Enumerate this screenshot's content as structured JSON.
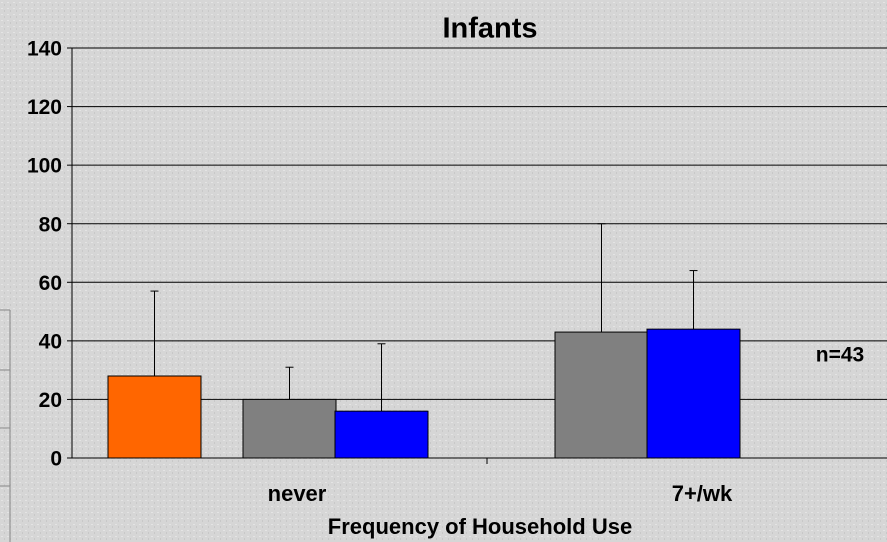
{
  "chart_data": {
    "type": "bar",
    "title": "Infants",
    "x_label": "Frequency of Household Use",
    "categories": [
      "never",
      "7+/wk"
    ],
    "series": [
      {
        "color": "#ff6600",
        "values": [
          28,
          null
        ],
        "errors": [
          29,
          null
        ]
      },
      {
        "color": "#808080",
        "values": [
          20,
          43
        ],
        "errors": [
          11,
          37
        ]
      },
      {
        "color": "#0000ff",
        "values": [
          16,
          44
        ],
        "errors": [
          23,
          20
        ]
      }
    ],
    "ylim": [
      0,
      140
    ],
    "yticks": [
      0,
      20,
      40,
      60,
      80,
      100,
      120,
      140
    ],
    "grid": true,
    "annotations": [
      "n=43"
    ]
  }
}
